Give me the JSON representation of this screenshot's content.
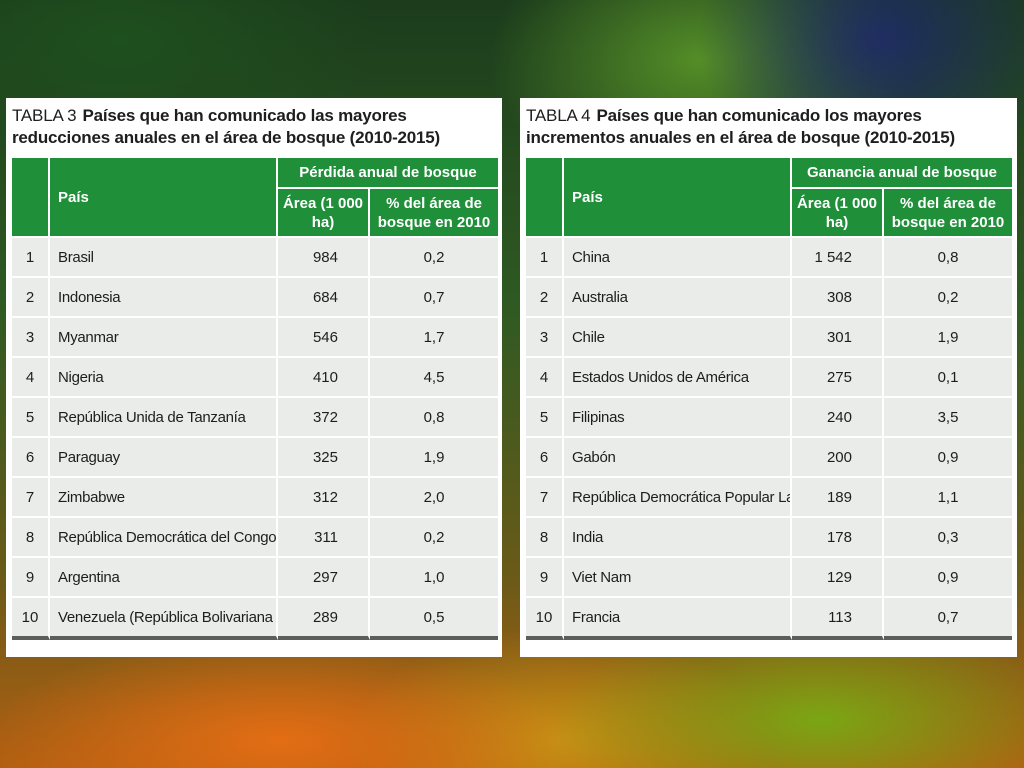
{
  "tables": [
    {
      "number": "TABLA 3",
      "title": "Países que han comunicado las mayores reducciones anuales en el área de bosque (2010-2015)",
      "col_country": "País",
      "group_header": "Pérdida anual de bosque",
      "col_area": "Área (1 000 ha)",
      "col_pct": "% del área de bosque en 2010",
      "rows": [
        {
          "rank": "1",
          "country": "Brasil",
          "area": "984",
          "pct": "0,2"
        },
        {
          "rank": "2",
          "country": "Indonesia",
          "area": "684",
          "pct": "0,7"
        },
        {
          "rank": "3",
          "country": "Myanmar",
          "area": "546",
          "pct": "1,7"
        },
        {
          "rank": "4",
          "country": "Nigeria",
          "area": "410",
          "pct": "4,5"
        },
        {
          "rank": "5",
          "country": "República Unida de Tanzanía",
          "area": "372",
          "pct": "0,8"
        },
        {
          "rank": "6",
          "country": "Paraguay",
          "area": "325",
          "pct": "1,9"
        },
        {
          "rank": "7",
          "country": "Zimbabwe",
          "area": "312",
          "pct": "2,0"
        },
        {
          "rank": "8",
          "country": "República Democrática del Congo",
          "area": "311",
          "pct": "0,2"
        },
        {
          "rank": "9",
          "country": "Argentina",
          "area": "297",
          "pct": "1,0"
        },
        {
          "rank": "10",
          "country": "Venezuela (República Bolivariana de)",
          "area": "289",
          "pct": "0,5"
        }
      ]
    },
    {
      "number": "TABLA 4",
      "title": "Países que han comunicado los mayores incrementos anuales en el área de bosque (2010-2015)",
      "col_country": "País",
      "group_header": "Ganancia anual de bosque",
      "col_area": "Área (1 000 ha)",
      "col_pct": "% del área de bosque en 2010",
      "rows": [
        {
          "rank": "1",
          "country": "China",
          "area": "1 542",
          "pct": "0,8"
        },
        {
          "rank": "2",
          "country": "Australia",
          "area": "308",
          "pct": "0,2"
        },
        {
          "rank": "3",
          "country": "Chile",
          "area": "301",
          "pct": "1,9"
        },
        {
          "rank": "4",
          "country": "Estados Unidos de América",
          "area": "275",
          "pct": "0,1"
        },
        {
          "rank": "5",
          "country": "Filipinas",
          "area": "240",
          "pct": "3,5"
        },
        {
          "rank": "6",
          "country": "Gabón",
          "area": "200",
          "pct": "0,9"
        },
        {
          "rank": "7",
          "country": "República Democrática Popular Lao",
          "area": "189",
          "pct": "1,1"
        },
        {
          "rank": "8",
          "country": "India",
          "area": "178",
          "pct": "0,3"
        },
        {
          "rank": "9",
          "country": "Viet Nam",
          "area": "129",
          "pct": "0,9"
        },
        {
          "rank": "10",
          "country": "Francia",
          "area": "113",
          "pct": "0,7"
        }
      ]
    }
  ]
}
